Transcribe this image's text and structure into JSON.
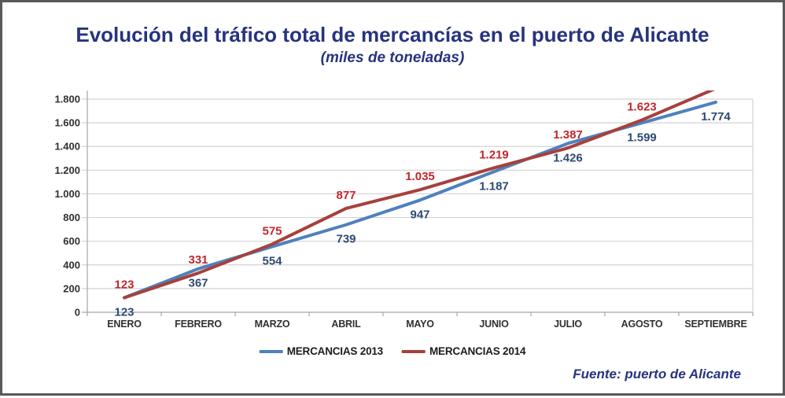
{
  "header": {
    "title": "Evolución del tráfico total de mercancías en el puerto de Alicante",
    "subtitle": "(miles de toneladas)"
  },
  "footer": {
    "source": "Fuente: puerto de Alicante"
  },
  "colors": {
    "title_text": "#27337e",
    "source_text": "#27337e",
    "grid": "#d2d2d2",
    "axis": "#a6a6a6",
    "tick_text": "#303030",
    "legend_text": "#1c1c1c",
    "frame": "#58595b"
  },
  "chart_data": {
    "type": "line",
    "title": "Evolución del tráfico total de mercancías en el puerto de Alicante",
    "subtitle": "(miles de toneladas)",
    "categories": [
      "ENERO",
      "FEBRERO",
      "MARZO",
      "ABRIL",
      "MAYO",
      "JUNIO",
      "JULIO",
      "AGOSTO",
      "SEPTIEMBRE"
    ],
    "series": [
      {
        "name": "MERCANCIAS 2013",
        "line_color": "#4f81bd",
        "label_color": "#2d4a73",
        "values": [
          123,
          367,
          554,
          739,
          947,
          1187,
          1426,
          1599,
          1774
        ],
        "data_labels": [
          "123",
          "367",
          "554",
          "739",
          "947",
          "1.187",
          "1.426",
          "1.599",
          "1.774"
        ],
        "label_position": "below"
      },
      {
        "name": "MERCANCIAS 2014",
        "line_color": "#a6413d",
        "label_color": "#c1272d",
        "values": [
          123,
          331,
          575,
          877,
          1035,
          1219,
          1387,
          1623,
          1890
        ],
        "data_labels": [
          "123",
          "331",
          "575",
          "877",
          "1.035",
          "1.219",
          "1.387",
          "1.623",
          ""
        ],
        "label_position": "above"
      }
    ],
    "ylim": [
      0,
      1800
    ],
    "ytick_step": 200,
    "ytick_labels": [
      "0",
      "200",
      "400",
      "600",
      "800",
      "1.000",
      "1.200",
      "1.400",
      "1.600",
      "1.800"
    ],
    "grid": true,
    "legend_position": "bottom",
    "note_last_2014_point": "line exits plot top, value estimated from slope, no label shown"
  }
}
